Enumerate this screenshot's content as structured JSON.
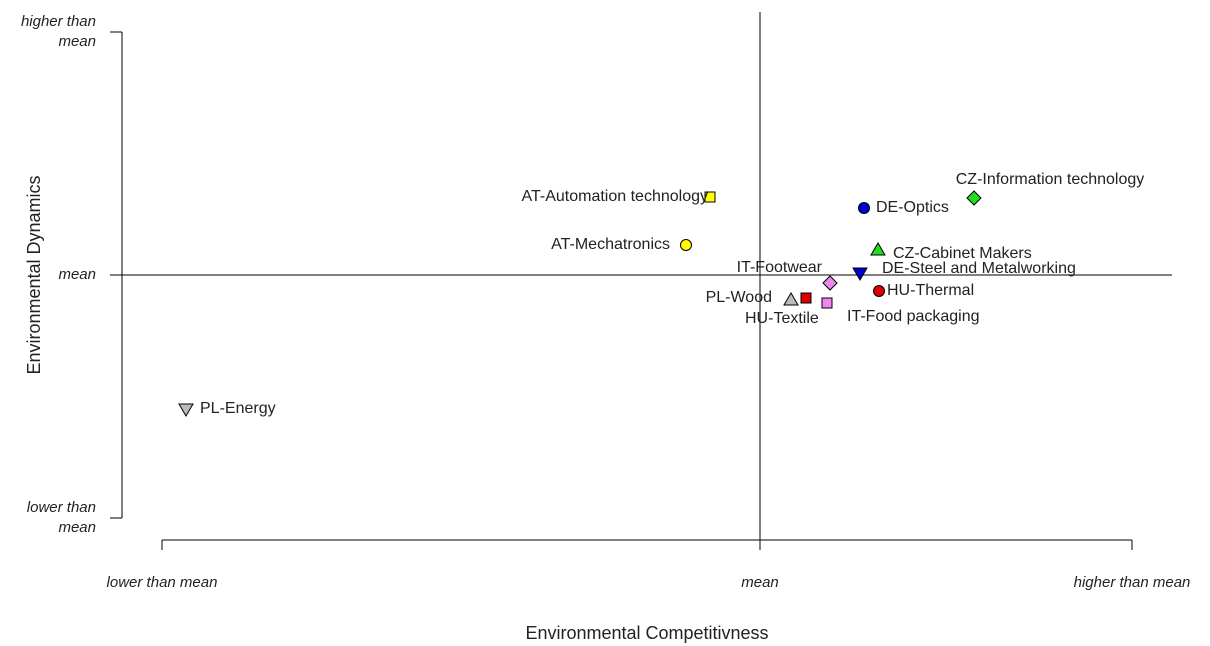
{
  "chart_data": {
    "type": "scatter",
    "x_label": "Environmental Competitivness",
    "y_label": "Environmental Dynamics",
    "xlim": [
      -6.6,
      4.5
    ],
    "ylim": [
      -2.75,
      2.63
    ],
    "xticks": [
      {
        "value": -5.98,
        "label": "lower than mean"
      },
      {
        "value": 0,
        "label": "mean"
      },
      {
        "value": 3.72,
        "label": "higher than mean"
      }
    ],
    "yticks": [
      {
        "value": -2.43,
        "label": "lower than mean"
      },
      {
        "value": 0,
        "label": "mean"
      },
      {
        "value": 2.43,
        "label": "higher than mean"
      }
    ],
    "series": [
      {
        "name": "AT-Automation technology",
        "marker": "square",
        "color": "#ffff00",
        "x": [
          -0.5
        ],
        "values": [
          0.78
        ]
      },
      {
        "name": "AT-Mechatronics",
        "marker": "circle",
        "color": "#ffff00",
        "x": [
          -0.74
        ],
        "values": [
          0.3
        ]
      },
      {
        "name": "DE-Optics",
        "marker": "circle",
        "color": "#0000cc",
        "x": [
          1.04
        ],
        "values": [
          0.67
        ]
      },
      {
        "name": "CZ-Information technology",
        "marker": "diamond",
        "color": "#22dd22",
        "x": [
          2.14
        ],
        "values": [
          0.77
        ]
      },
      {
        "name": "CZ-Cabinet Makers",
        "marker": "triangle",
        "color": "#22dd22",
        "x": [
          1.18
        ],
        "values": [
          0.25
        ]
      },
      {
        "name": "DE-Steel and Metalworking",
        "marker": "triangle-down",
        "color": "#0000cc",
        "x": [
          1.0
        ],
        "values": [
          0.02
        ]
      },
      {
        "name": "IT-Footwear",
        "marker": "diamond",
        "color": "#ee88ee",
        "x": [
          0.7
        ],
        "values": [
          -0.08
        ]
      },
      {
        "name": "HU-Thermal",
        "marker": "circle",
        "color": "#dd0000",
        "x": [
          1.19
        ],
        "values": [
          -0.16
        ]
      },
      {
        "name": "PL-Wood",
        "marker": "square",
        "color": "#dd0000",
        "x": [
          0.46
        ],
        "values": [
          -0.23
        ]
      },
      {
        "name": "HU-Textile",
        "marker": "triangle",
        "color": "#bbbbbb",
        "x": [
          0.31
        ],
        "values": [
          -0.25
        ]
      },
      {
        "name": "IT-Food packaging",
        "marker": "square",
        "color": "#ee88ee",
        "x": [
          0.67
        ],
        "values": [
          -0.28
        ]
      },
      {
        "name": "PL-Energy",
        "marker": "triangle-down",
        "color": "#bbbbbb",
        "x": [
          -5.74
        ],
        "values": [
          -1.34
        ]
      }
    ]
  }
}
